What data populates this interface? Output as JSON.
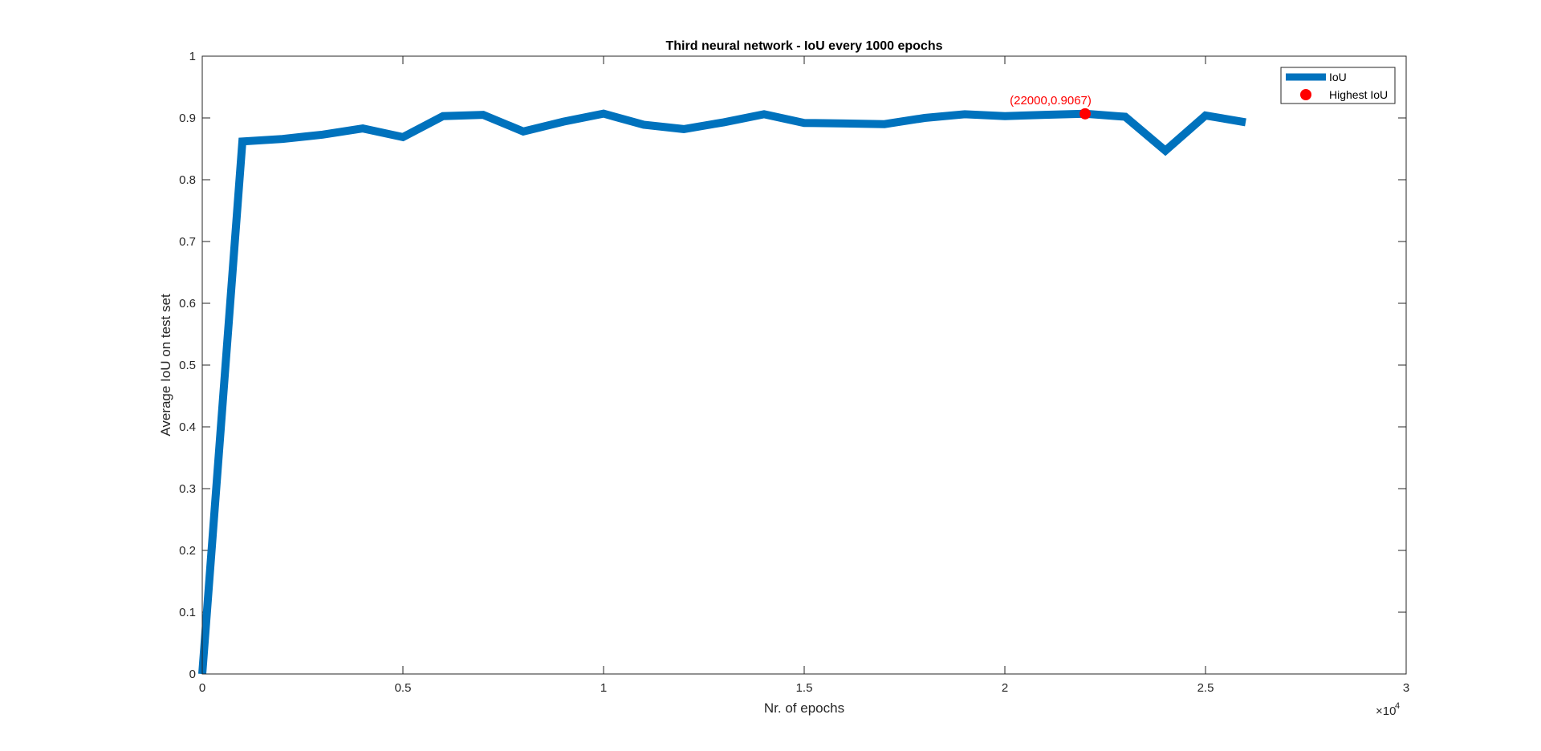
{
  "chart_data": {
    "type": "line",
    "title": "Third neural network - IoU every 1000 epochs",
    "xlabel": "Nr. of epochs",
    "ylabel": "Average IoU on test set",
    "x_exponent_label": "×10",
    "x_exponent_power": "4",
    "xlim": [
      0,
      30000
    ],
    "ylim": [
      0,
      1
    ],
    "x_ticks": [
      0,
      5000,
      10000,
      15000,
      20000,
      25000,
      30000
    ],
    "x_tick_labels": [
      "0",
      "0.5",
      "1",
      "1.5",
      "2",
      "2.5",
      "3"
    ],
    "y_ticks": [
      0,
      0.1,
      0.2,
      0.3,
      0.4,
      0.5,
      0.6,
      0.7,
      0.8,
      0.9,
      1
    ],
    "y_tick_labels": [
      "0",
      "0.1",
      "0.2",
      "0.3",
      "0.4",
      "0.5",
      "0.6",
      "0.7",
      "0.8",
      "0.9",
      "1"
    ],
    "grid": false,
    "legend_position": "top-right",
    "series": [
      {
        "name": "IoU",
        "color": "#0072BD",
        "x": [
          0,
          1000,
          2000,
          3000,
          4000,
          5000,
          6000,
          7000,
          8000,
          9000,
          10000,
          11000,
          12000,
          13000,
          14000,
          15000,
          16000,
          17000,
          18000,
          19000,
          20000,
          21000,
          22000,
          23000,
          24000,
          25000,
          26000
        ],
        "y": [
          0.0,
          0.862,
          0.866,
          0.873,
          0.883,
          0.869,
          0.903,
          0.905,
          0.878,
          0.894,
          0.907,
          0.889,
          0.882,
          0.893,
          0.906,
          0.892,
          0.891,
          0.89,
          0.9,
          0.906,
          0.903,
          0.905,
          0.9067,
          0.902,
          0.847,
          0.904,
          0.893
        ]
      }
    ],
    "highlight": {
      "name": "Highest IoU",
      "color": "#FF0000",
      "x": 22000,
      "y": 0.9067,
      "label": "(22000,0.9067)"
    }
  }
}
